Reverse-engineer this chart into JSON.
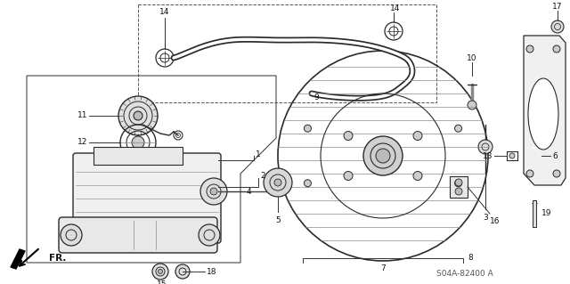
{
  "bg_color": "#ffffff",
  "diagram_code": "S04A-82400 A",
  "fr_label": "FR.",
  "line_color": "#2a2a2a",
  "text_color": "#111111",
  "figsize": [
    6.4,
    3.19
  ],
  "dpi": 100
}
